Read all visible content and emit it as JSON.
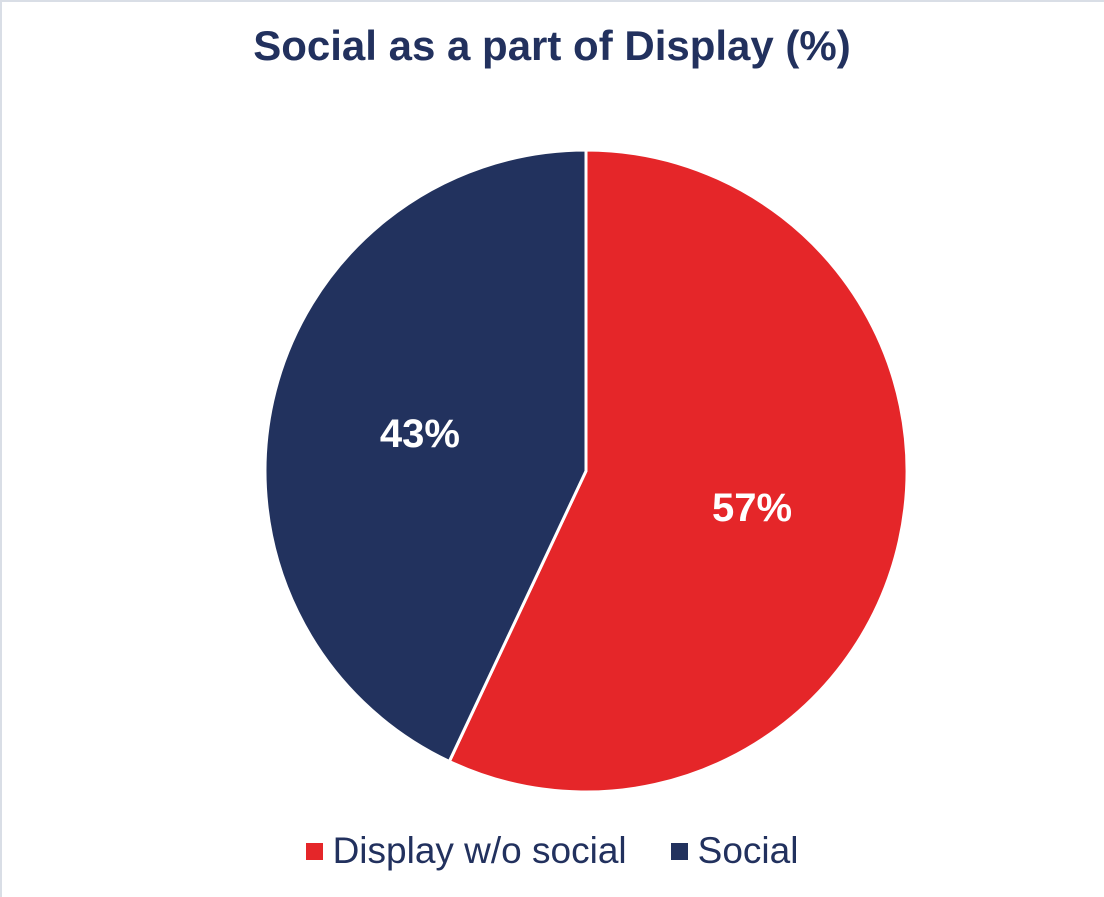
{
  "chart_data": {
    "type": "pie",
    "title": "Social as a part of Display (%)",
    "categories": [
      "Display w/o social",
      "Social"
    ],
    "values": [
      57,
      43
    ],
    "labels": [
      "57%",
      "43%"
    ],
    "colors": [
      "#e52629",
      "#22325e"
    ],
    "title_color": "#22315e",
    "legend": {
      "position": "bottom"
    }
  }
}
